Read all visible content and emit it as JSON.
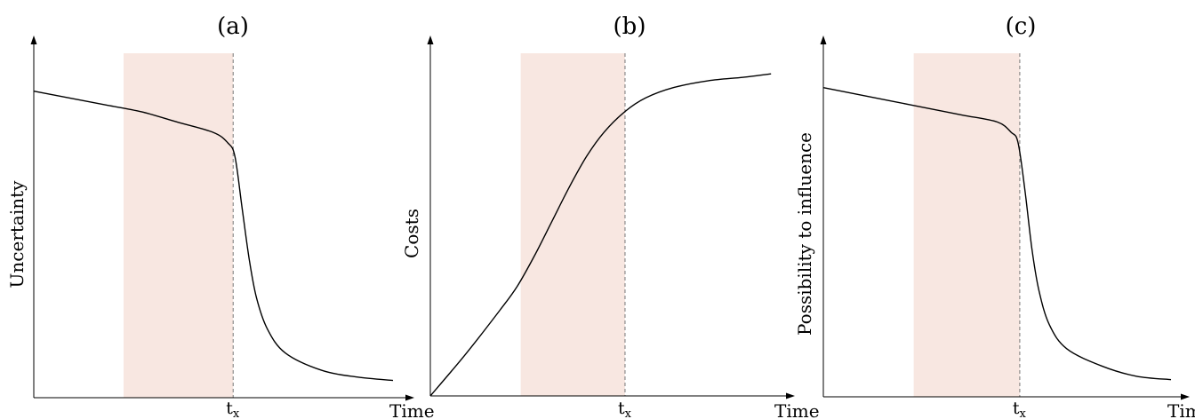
{
  "chart_data": [
    {
      "type": "line",
      "panel_label": "(a)",
      "ylabel": "Uncertainty",
      "xlabel": "Time",
      "xtick_label": "t",
      "xtick_subscript": "x",
      "xlim": [
        0,
        1
      ],
      "ylim": [
        0,
        1
      ],
      "grid": false,
      "shaded_region": {
        "x": [
          0.25,
          0.555
        ],
        "color": "#f8e7e1"
      },
      "marker_line_x": 0.555,
      "series": [
        {
          "x": [
            0,
            0.1,
            0.2,
            0.3,
            0.4,
            0.5,
            0.54,
            0.56,
            0.58,
            0.6,
            0.62,
            0.65,
            0.7,
            0.8,
            0.9,
            1.0
          ],
          "y": [
            0.89,
            0.87,
            0.85,
            0.83,
            0.8,
            0.77,
            0.74,
            0.7,
            0.55,
            0.4,
            0.29,
            0.2,
            0.13,
            0.08,
            0.06,
            0.05
          ]
        }
      ]
    },
    {
      "type": "line",
      "panel_label": "(b)",
      "ylabel": "Costs",
      "xlabel": "Time",
      "xtick_label": "t",
      "xtick_subscript": "x",
      "xlim": [
        0,
        1
      ],
      "ylim": [
        0,
        1
      ],
      "grid": false,
      "shaded_region": {
        "x": [
          0.26,
          0.56
        ],
        "color": "#f8e7e1"
      },
      "marker_line_x": 0.56,
      "series": [
        {
          "x": [
            0,
            0.1,
            0.2,
            0.25,
            0.3,
            0.35,
            0.4,
            0.45,
            0.5,
            0.56,
            0.62,
            0.7,
            0.8,
            0.9,
            0.98
          ],
          "y": [
            0,
            0.12,
            0.25,
            0.32,
            0.41,
            0.51,
            0.61,
            0.7,
            0.77,
            0.83,
            0.87,
            0.9,
            0.92,
            0.93,
            0.94
          ]
        }
      ]
    },
    {
      "type": "line",
      "panel_label": "(c)",
      "ylabel": "Possibility to influence",
      "xlabel": "Time",
      "xtick_label": "t",
      "xtick_subscript": "x",
      "xlim": [
        0,
        1
      ],
      "ylim": [
        0,
        1
      ],
      "grid": false,
      "shaded_region": {
        "x": [
          0.26,
          0.565
        ],
        "color": "#f8e7e1"
      },
      "marker_line_x": 0.565,
      "series": [
        {
          "x": [
            0,
            0.1,
            0.2,
            0.3,
            0.4,
            0.5,
            0.54,
            0.56,
            0.58,
            0.6,
            0.62,
            0.65,
            0.7,
            0.8,
            0.9,
            1.0
          ],
          "y": [
            0.9,
            0.88,
            0.86,
            0.84,
            0.82,
            0.8,
            0.77,
            0.74,
            0.6,
            0.43,
            0.31,
            0.21,
            0.14,
            0.09,
            0.06,
            0.05
          ]
        }
      ]
    }
  ]
}
